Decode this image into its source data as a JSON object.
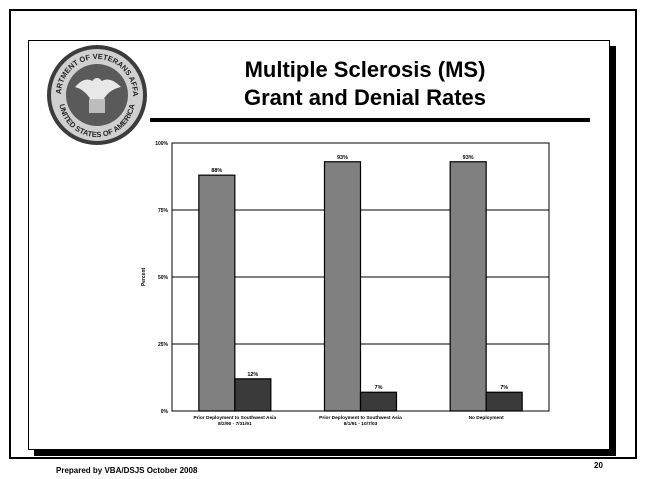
{
  "slide": {
    "title_line1": "Multiple Sclerosis (MS)",
    "title_line2": "Grant and Denial Rates",
    "footer_left": "Prepared by VBA/DSJS October 2008",
    "page_number": "20",
    "seal_text_top": "DEPARTMENT OF VETERANS AFFAIRS",
    "seal_text_bottom": "UNITED STATES OF AMERICA"
  },
  "colors": {
    "grant_bar": "#808080",
    "denial_bar": "#3a3a3a",
    "plot_bg": "#ffffff",
    "gridline": "#000000"
  },
  "chart_data": {
    "type": "bar",
    "title": "",
    "xlabel": "",
    "ylabel": "Percent",
    "ylim": [
      0,
      100
    ],
    "y_ticks": [
      "0%",
      "25%",
      "50%",
      "75%",
      "100%"
    ],
    "grid": true,
    "legend": "none",
    "categories": [
      "Prior Deployment to Southwest Asia 8/2/90 - 7/31/91",
      "Prior Deployment to Southwest Asia 8/1/91 - 10/7/03",
      "No Deployment"
    ],
    "series": [
      {
        "values": [
          88,
          93,
          93
        ],
        "labels": [
          "88%",
          "93%",
          "93%"
        ]
      },
      {
        "values": [
          12,
          7,
          7
        ],
        "labels": [
          "12%",
          "7%",
          "7%"
        ]
      }
    ]
  }
}
